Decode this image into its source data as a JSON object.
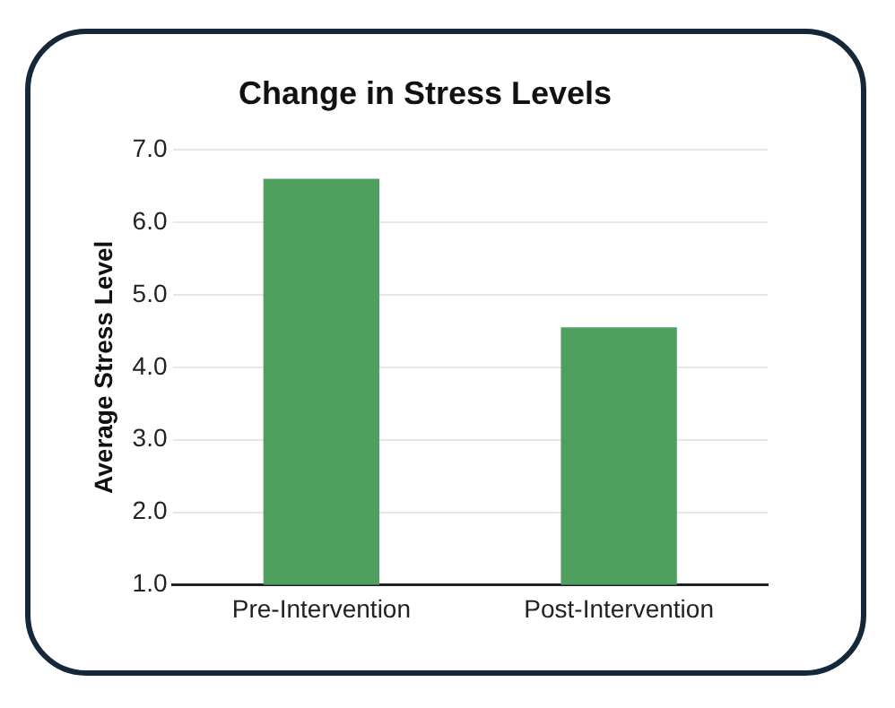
{
  "chart_data": {
    "type": "bar",
    "title": "Change in Stress Levels",
    "ylabel": "Average Stress Level",
    "categories": [
      "Pre-Intervention",
      "Post-Intervention"
    ],
    "values": [
      6.6,
      4.55
    ],
    "color": "#4f9f5e",
    "ylim": [
      1,
      7
    ],
    "yticks": [
      {
        "value": 1,
        "label": "1.0"
      },
      {
        "value": 2,
        "label": "2.0"
      },
      {
        "value": 3,
        "label": "3.0"
      },
      {
        "value": 4,
        "label": "4.0"
      },
      {
        "value": 5,
        "label": "5.0"
      },
      {
        "value": 6,
        "label": "6.0"
      },
      {
        "value": 7,
        "label": "7.0"
      }
    ],
    "grid": "y",
    "legend": false
  }
}
